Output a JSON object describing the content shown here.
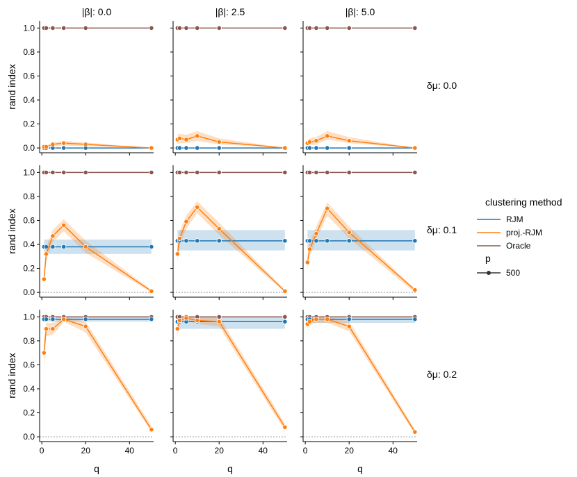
{
  "colors": {
    "RJM": "#1f77b4",
    "proj-RJM": "#ff7f0e",
    "Oracle": "#8c564b",
    "zero_line": "#999999"
  },
  "text": {
    "col_prefix": "|β|:",
    "row_prefix": "δμ:",
    "ylabel": "rand index",
    "xlabel": "q"
  },
  "legend": {
    "title": "clustering method",
    "entries": [
      {
        "label": "RJM",
        "color": "#1f77b4"
      },
      {
        "label": "proj.-RJM",
        "color": "#ff7f0e"
      },
      {
        "label": "Oracle",
        "color": "#8c564b"
      }
    ],
    "size_title": "p",
    "size_entry": "500"
  },
  "chart_data": {
    "type": "line",
    "columns": [
      "0.0",
      "2.5",
      "5.0"
    ],
    "rows": [
      "0.0",
      "0.1",
      "0.2"
    ],
    "x": [
      1,
      2,
      5,
      10,
      20,
      50
    ],
    "xticks": [
      0,
      20,
      40
    ],
    "xlim": [
      -1,
      51
    ],
    "ylim": [
      -0.04,
      1.06
    ],
    "yticks": [
      "0.0",
      "0.2",
      "0.4",
      "0.6",
      "0.8",
      "1.0"
    ],
    "panels": [
      {
        "row": 0,
        "col": 0,
        "RJM": [
          0.0,
          0.0,
          0.0,
          0.0,
          0.0,
          0.0
        ],
        "proj": [
          0.01,
          0.01,
          0.03,
          0.04,
          0.03,
          0.0
        ],
        "proj_band": [
          [
            0.0,
            0.02
          ],
          [
            0.0,
            0.02
          ],
          [
            0.015,
            0.045
          ],
          [
            0.02,
            0.06
          ],
          [
            0.015,
            0.045
          ],
          [
            0.0,
            0.0
          ]
        ],
        "Oracle": [
          1,
          1,
          1,
          1,
          1,
          1
        ]
      },
      {
        "row": 0,
        "col": 1,
        "RJM": [
          0.0,
          0.0,
          0.0,
          0.0,
          0.0,
          0.0
        ],
        "proj": [
          0.07,
          0.08,
          0.07,
          0.1,
          0.05,
          0.0
        ],
        "proj_band": [
          [
            0.03,
            0.11
          ],
          [
            0.04,
            0.12
          ],
          [
            0.04,
            0.11
          ],
          [
            0.06,
            0.14
          ],
          [
            0.03,
            0.08
          ],
          [
            0.0,
            0.0
          ]
        ],
        "Oracle": [
          1,
          1,
          1,
          1,
          1,
          1
        ]
      },
      {
        "row": 0,
        "col": 2,
        "RJM": [
          0.0,
          0.0,
          0.0,
          0.0,
          0.0,
          0.0
        ],
        "proj": [
          0.04,
          0.05,
          0.06,
          0.1,
          0.06,
          0.0
        ],
        "proj_band": [
          [
            0.02,
            0.07
          ],
          [
            0.02,
            0.08
          ],
          [
            0.03,
            0.09
          ],
          [
            0.07,
            0.14
          ],
          [
            0.04,
            0.09
          ],
          [
            0.0,
            0.0
          ]
        ],
        "Oracle": [
          1,
          1,
          1,
          1,
          1,
          1
        ]
      },
      {
        "row": 1,
        "col": 0,
        "RJM": [
          0.38,
          0.38,
          0.38,
          0.38,
          0.38,
          0.38
        ],
        "RJM_band": [
          0.32,
          0.44
        ],
        "proj": [
          0.11,
          0.32,
          0.47,
          0.56,
          0.38,
          0.01
        ],
        "proj_band": [
          [
            0.06,
            0.16
          ],
          [
            0.26,
            0.38
          ],
          [
            0.42,
            0.52
          ],
          [
            0.51,
            0.61
          ],
          [
            0.33,
            0.43
          ],
          [
            0.0,
            0.02
          ]
        ],
        "Oracle": [
          1,
          1,
          1,
          1,
          1,
          1
        ]
      },
      {
        "row": 1,
        "col": 1,
        "RJM": [
          0.43,
          0.43,
          0.43,
          0.43,
          0.43,
          0.43
        ],
        "RJM_band": [
          0.35,
          0.52
        ],
        "proj": [
          0.32,
          0.45,
          0.59,
          0.71,
          0.53,
          0.01
        ],
        "proj_band": [
          [
            0.26,
            0.39
          ],
          [
            0.39,
            0.51
          ],
          [
            0.53,
            0.64
          ],
          [
            0.66,
            0.76
          ],
          [
            0.48,
            0.58
          ],
          [
            0.0,
            0.02
          ]
        ],
        "Oracle": [
          1,
          1,
          1,
          1,
          1,
          1
        ]
      },
      {
        "row": 1,
        "col": 2,
        "RJM": [
          0.43,
          0.43,
          0.43,
          0.43,
          0.43,
          0.43
        ],
        "RJM_band": [
          0.35,
          0.52
        ],
        "proj": [
          0.25,
          0.36,
          0.49,
          0.7,
          0.5,
          0.02
        ],
        "proj_band": [
          [
            0.19,
            0.31
          ],
          [
            0.3,
            0.42
          ],
          [
            0.44,
            0.55
          ],
          [
            0.64,
            0.75
          ],
          [
            0.45,
            0.55
          ],
          [
            0.0,
            0.03
          ]
        ],
        "Oracle": [
          1,
          1,
          1,
          1,
          1,
          1
        ]
      },
      {
        "row": 2,
        "col": 0,
        "RJM": [
          0.98,
          0.98,
          0.98,
          0.98,
          0.98,
          0.98
        ],
        "RJM_band": [
          0.96,
          1.0
        ],
        "proj": [
          0.7,
          0.9,
          0.9,
          0.98,
          0.92,
          0.06
        ],
        "proj_band": [
          [
            0.58,
            0.8
          ],
          [
            0.84,
            0.95
          ],
          [
            0.85,
            0.95
          ],
          [
            0.96,
            1.0
          ],
          [
            0.87,
            0.96
          ],
          [
            0.04,
            0.09
          ]
        ],
        "Oracle": [
          1,
          1,
          1,
          1,
          1,
          1
        ]
      },
      {
        "row": 2,
        "col": 1,
        "RJM": [
          0.96,
          0.96,
          0.96,
          0.96,
          0.96,
          0.96
        ],
        "RJM_band": [
          0.9,
          1.0
        ],
        "proj": [
          0.9,
          0.97,
          0.99,
          0.97,
          0.96,
          0.08
        ],
        "proj_band": [
          [
            0.84,
            0.95
          ],
          [
            0.94,
            1.0
          ],
          [
            0.97,
            1.0
          ],
          [
            0.94,
            1.0
          ],
          [
            0.92,
            1.0
          ],
          [
            0.05,
            0.11
          ]
        ],
        "Oracle": [
          1,
          1,
          1,
          1,
          1,
          1
        ]
      },
      {
        "row": 2,
        "col": 2,
        "RJM": [
          0.98,
          0.98,
          0.98,
          0.98,
          0.98,
          0.98
        ],
        "RJM_band": [
          0.95,
          1.0
        ],
        "proj": [
          0.94,
          0.96,
          0.98,
          0.98,
          0.92,
          0.04
        ],
        "proj_band": [
          [
            0.9,
            0.98
          ],
          [
            0.93,
            0.99
          ],
          [
            0.95,
            1.0
          ],
          [
            0.95,
            1.0
          ],
          [
            0.88,
            0.96
          ],
          [
            0.02,
            0.06
          ]
        ],
        "Oracle": [
          1,
          1,
          1,
          1,
          1,
          1
        ]
      }
    ]
  }
}
